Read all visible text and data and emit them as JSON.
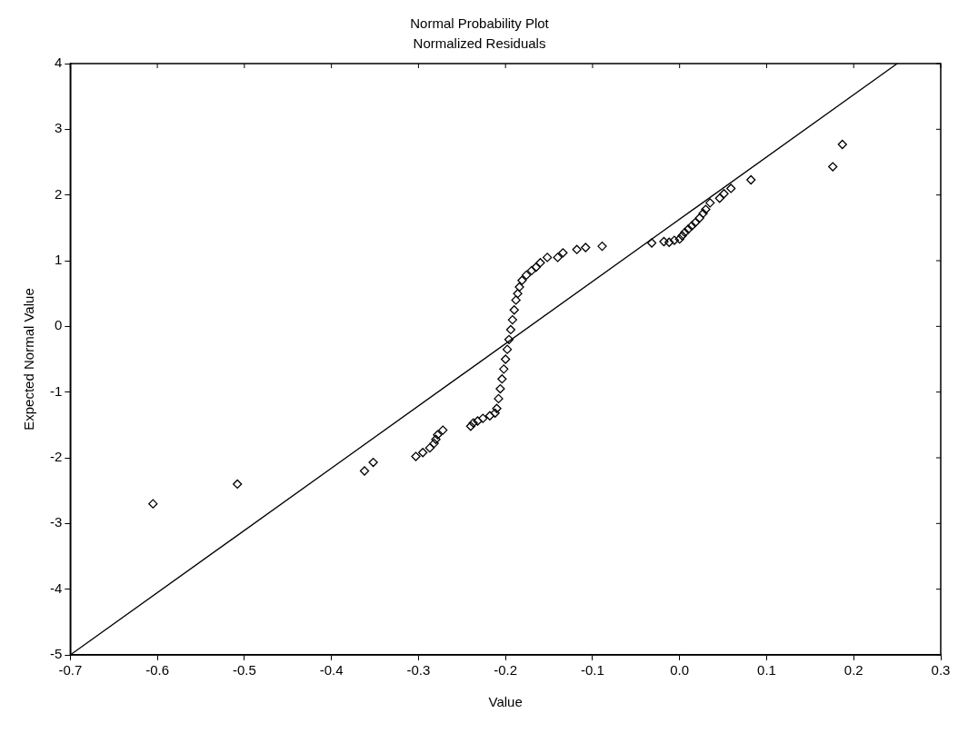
{
  "chart_data": {
    "type": "scatter",
    "title": "Normal Probability Plot",
    "subtitle": "Normalized Residuals",
    "xlabel": "Value",
    "ylabel": "Expected Normal Value",
    "xlim": [
      -0.7,
      0.3
    ],
    "xticks": [
      -0.7,
      -0.6,
      -0.5,
      -0.4,
      -0.3,
      -0.2,
      -0.1,
      {
        "value": 0,
        "label": "0.0"
      },
      0.1,
      0.2,
      0.3
    ],
    "ylim": [
      -5,
      4
    ],
    "yticks": [
      -5,
      -4,
      -3,
      -2,
      -1,
      0,
      1,
      2,
      3,
      4
    ],
    "grid": false,
    "legend": false,
    "series": [
      {
        "marker": "diamond",
        "color": "#000000",
        "x": [
          -0.605,
          -0.508,
          -0.362,
          -0.352,
          -0.303,
          -0.295,
          -0.287,
          -0.282,
          -0.28,
          -0.278,
          -0.272,
          -0.24,
          -0.237,
          -0.232,
          -0.226,
          -0.218,
          -0.212,
          -0.21,
          -0.208,
          -0.206,
          -0.204,
          -0.202,
          -0.2,
          -0.198,
          -0.196,
          -0.194,
          -0.192,
          -0.19,
          -0.188,
          -0.186,
          -0.184,
          -0.181,
          -0.176,
          -0.17,
          -0.165,
          -0.16,
          -0.152,
          -0.14,
          -0.134,
          -0.118,
          -0.108,
          -0.089,
          -0.032,
          -0.018,
          -0.012,
          -0.006,
          0.0,
          0.003,
          0.006,
          0.01,
          0.014,
          0.018,
          0.023,
          0.027,
          0.03,
          0.035,
          0.046,
          0.051,
          0.059,
          0.082,
          0.176,
          0.187
        ],
        "values": [
          -2.7,
          -2.4,
          -2.2,
          -2.07,
          -1.98,
          -1.92,
          -1.85,
          -1.78,
          -1.72,
          -1.65,
          -1.58,
          -1.52,
          -1.47,
          -1.44,
          -1.4,
          -1.36,
          -1.32,
          -1.25,
          -1.1,
          -0.95,
          -0.8,
          -0.65,
          -0.5,
          -0.35,
          -0.2,
          -0.05,
          0.1,
          0.25,
          0.4,
          0.5,
          0.6,
          0.7,
          0.78,
          0.85,
          0.9,
          0.97,
          1.05,
          1.05,
          1.12,
          1.17,
          1.2,
          1.22,
          1.27,
          1.29,
          1.28,
          1.31,
          1.33,
          1.38,
          1.43,
          1.48,
          1.53,
          1.58,
          1.65,
          1.72,
          1.78,
          1.88,
          1.95,
          2.02,
          2.1,
          2.23,
          2.43,
          2.77
        ]
      },
      {
        "type": "line",
        "marker": "none",
        "line_style": "solid",
        "color": "#000000",
        "x": [
          -0.7,
          0.25
        ],
        "values": [
          -5,
          4
        ]
      }
    ]
  }
}
